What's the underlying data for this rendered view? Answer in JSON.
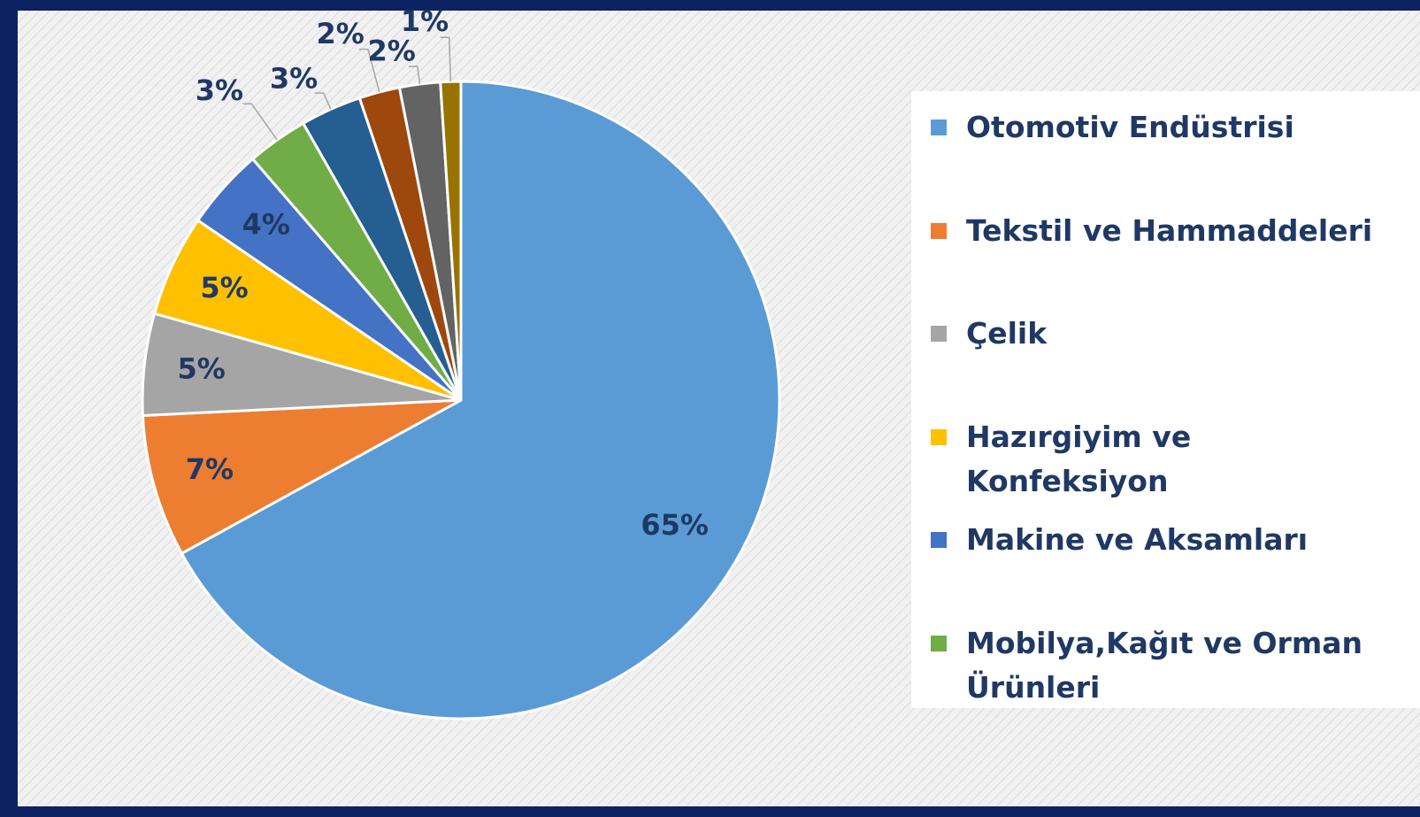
{
  "chart_data": {
    "type": "pie",
    "categories": [
      "Otomotiv Endüstrisi",
      "Tekstil ve Hammaddeleri",
      "Çelik",
      "Hazırgiyim ve Konfeksiyon",
      "Makine ve Aksamları",
      "Mobilya,Kağıt ve Orman Ürünleri",
      null,
      null,
      null,
      null
    ],
    "values": [
      65,
      7,
      5,
      5,
      4,
      3,
      3,
      2,
      2,
      1
    ],
    "value_labels": [
      "65%",
      "7%",
      "5%",
      "5%",
      "4%",
      "3%",
      "3%",
      "2%",
      "2%",
      "1%"
    ],
    "colors": [
      "#5b9bd5",
      "#ed7d31",
      "#a5a5a5",
      "#ffc000",
      "#4472c4",
      "#70ad47",
      "#255e91",
      "#9e480e",
      "#636363",
      "#997300"
    ]
  }
}
